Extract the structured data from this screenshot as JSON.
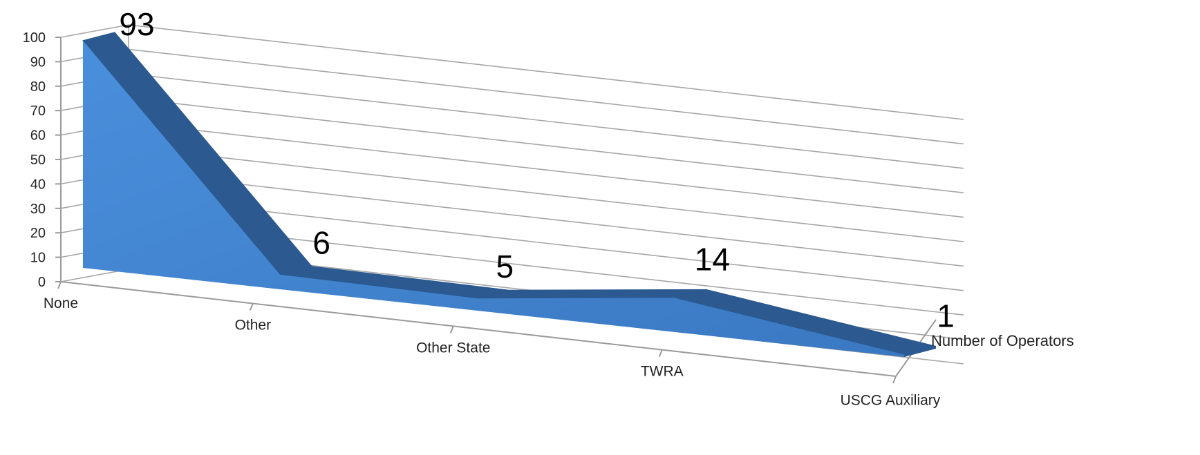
{
  "chart_data": {
    "type": "area",
    "three_d": true,
    "categories": [
      "None",
      "Other",
      "Other State",
      "TWRA",
      "USCG Auxiliary"
    ],
    "series": [
      {
        "name": "Number of Operators",
        "values": [
          93,
          6,
          5,
          14,
          1
        ]
      }
    ],
    "data_labels": [
      "93",
      "6",
      "5",
      "14",
      "1"
    ],
    "y_ticks": [
      "0",
      "10",
      "20",
      "30",
      "40",
      "50",
      "60",
      "70",
      "80",
      "90",
      "100"
    ],
    "ylim": [
      0,
      100
    ],
    "grid": true,
    "colors": {
      "front": "#3a78c2",
      "front_light": "#4a8fdc",
      "top": "#2b5990",
      "gridline": "#a6a6a6",
      "axis": "#9a9a9a"
    }
  }
}
